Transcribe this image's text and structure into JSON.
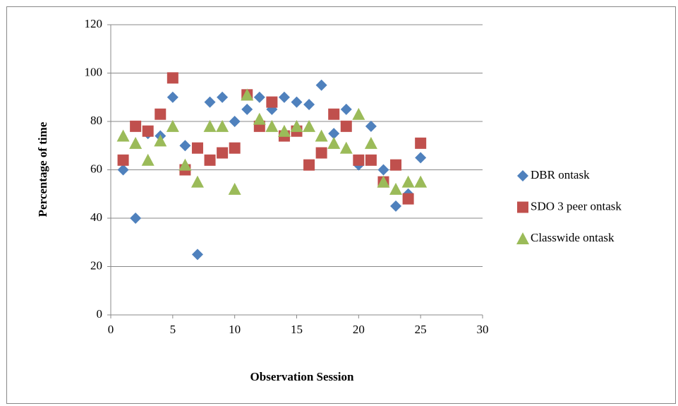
{
  "chart_data": {
    "type": "scatter",
    "xlabel": "Observation Session",
    "ylabel": "Percentage of time",
    "x": [
      1,
      2,
      3,
      4,
      5,
      6,
      7,
      8,
      9,
      10,
      11,
      12,
      13,
      14,
      15,
      16,
      17,
      18,
      19,
      20,
      21,
      22,
      23,
      24,
      25
    ],
    "series": [
      {
        "name": "DBR ontask",
        "color": "#4f81bd",
        "marker": "diamond",
        "values": [
          60,
          40,
          75,
          74,
          90,
          70,
          25,
          88,
          90,
          80,
          85,
          90,
          85,
          90,
          88,
          87,
          95,
          75,
          85,
          62,
          78,
          60,
          45,
          50,
          65
        ]
      },
      {
        "name": "SDO 3 peer ontask",
        "color": "#c0504d",
        "marker": "square",
        "values": [
          64,
          78,
          76,
          83,
          98,
          60,
          69,
          64,
          67,
          69,
          91,
          78,
          88,
          74,
          76,
          62,
          67,
          83,
          78,
          64,
          64,
          55,
          62,
          48,
          71
        ]
      },
      {
        "name": "Classwide ontask",
        "color": "#9bbb59",
        "marker": "triangle",
        "values": [
          74,
          71,
          64,
          72,
          78,
          62,
          55,
          78,
          78,
          52,
          91,
          81,
          78,
          76,
          78,
          78,
          74,
          71,
          69,
          83,
          71,
          55,
          52,
          55,
          55
        ]
      }
    ],
    "xlim": [
      0,
      30
    ],
    "xticks": [
      0,
      5,
      10,
      15,
      20,
      25,
      30
    ],
    "ylim": [
      0,
      120
    ],
    "yticks": [
      0,
      20,
      40,
      60,
      80,
      100,
      120
    ],
    "grid": true,
    "legend": "right"
  }
}
